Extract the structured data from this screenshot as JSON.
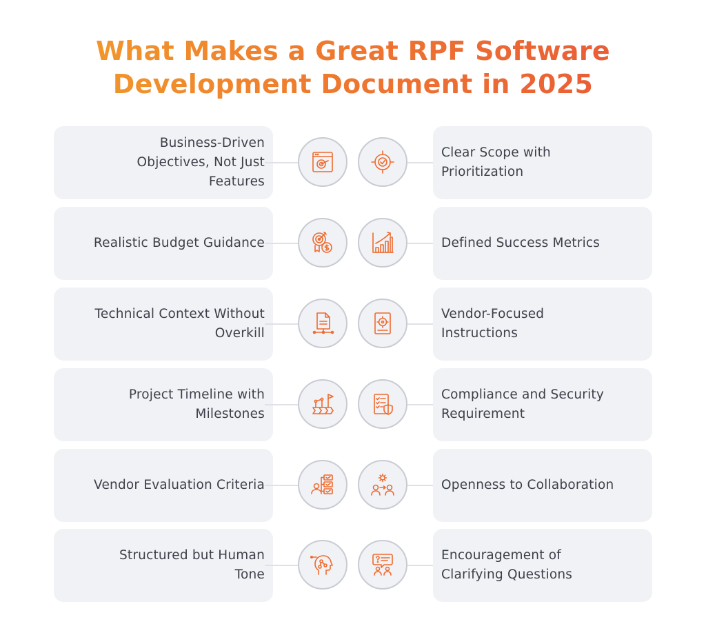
{
  "title": {
    "line1": "What Makes a Great RPF Software",
    "line2": "Development Document in 2025"
  },
  "colors": {
    "accent": "#ef6a2e",
    "card_bg": "#f1f2f5",
    "circle_border": "#c9cbd3",
    "text": "#3d3f4a"
  },
  "rows": [
    {
      "left": {
        "label": "Business-Driven Objectives, Not Just Features",
        "icon": "browser-target-icon"
      },
      "right": {
        "label": "Clear Scope with Prioritization",
        "icon": "target-check-icon"
      }
    },
    {
      "left": {
        "label": "Realistic Budget Guidance",
        "icon": "target-dollar-icon"
      },
      "right": {
        "label": "Defined Success Metrics",
        "icon": "bar-chart-growth-icon"
      }
    },
    {
      "left": {
        "label": "Technical Context Without Overkill",
        "icon": "document-network-icon"
      },
      "right": {
        "label": "Vendor-Focused Instructions",
        "icon": "document-target-icon"
      }
    },
    {
      "left": {
        "label": "Project Timeline with Milestones",
        "icon": "milestone-flag-icon"
      },
      "right": {
        "label": "Compliance and Security Requirement",
        "icon": "checklist-shield-icon"
      }
    },
    {
      "left": {
        "label": "Vendor Evaluation Criteria",
        "icon": "user-checklist-icon"
      },
      "right": {
        "label": "Openness to Collaboration",
        "icon": "team-gear-icon"
      }
    },
    {
      "left": {
        "label": "Structured but Human Tone",
        "icon": "head-network-icon"
      },
      "right": {
        "label": "Encouragement of Clarifying Questions",
        "icon": "chat-question-icon"
      }
    }
  ]
}
